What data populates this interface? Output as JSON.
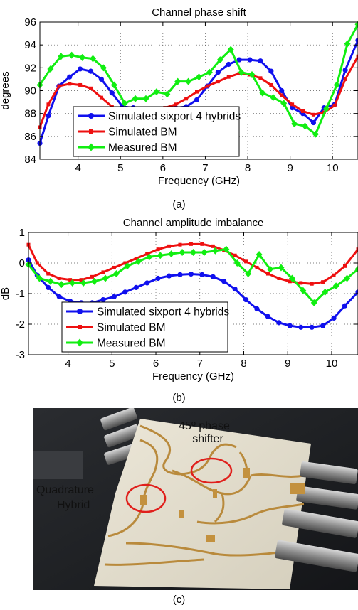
{
  "chart_data": [
    {
      "type": "line",
      "title": "Channel phase shift",
      "xlabel": "Frequency (GHz)",
      "ylabel": "degrees",
      "xlim": [
        3.1,
        10.6
      ],
      "ylim": [
        84,
        96
      ],
      "xticks": [
        4,
        5,
        6,
        7,
        8,
        9,
        10
      ],
      "yticks": [
        84,
        86,
        88,
        90,
        92,
        94,
        96
      ],
      "grid": true,
      "legend": "lower-left",
      "caption": "(a)",
      "series": [
        {
          "name": "Simulated sixport 4 hybrids",
          "color": "#1010ee",
          "marker": "circle",
          "x": [
            3.1,
            3.3,
            3.55,
            3.8,
            4.05,
            4.3,
            4.55,
            4.8,
            5.05,
            5.3,
            5.55,
            5.8,
            6.05,
            6.3,
            6.55,
            6.8,
            7.05,
            7.3,
            7.55,
            7.8,
            8.05,
            8.3,
            8.55,
            8.8,
            9.05,
            9.3,
            9.55,
            9.8,
            10.05,
            10.3,
            10.6
          ],
          "y": [
            85.4,
            87.8,
            90.4,
            91.2,
            91.9,
            91.7,
            91.0,
            89.8,
            88.6,
            88.5,
            88.3,
            88.3,
            88.3,
            88.5,
            88.6,
            89.2,
            90.4,
            91.6,
            92.3,
            92.7,
            92.7,
            92.6,
            91.7,
            90.0,
            88.5,
            88.0,
            87.2,
            88.5,
            88.8,
            91.8,
            94.4
          ]
        },
        {
          "name": "Simulated BM",
          "color": "#ee1010",
          "marker": "square",
          "x": [
            3.1,
            3.3,
            3.55,
            3.8,
            4.05,
            4.3,
            4.55,
            4.8,
            5.05,
            5.3,
            5.55,
            5.8,
            6.05,
            6.3,
            6.55,
            6.8,
            7.05,
            7.3,
            7.55,
            7.8,
            8.05,
            8.3,
            8.55,
            8.8,
            9.05,
            9.3,
            9.55,
            9.8,
            10.05,
            10.3,
            10.6
          ],
          "y": [
            86.8,
            88.8,
            90.4,
            90.6,
            90.5,
            90.2,
            89.4,
            88.6,
            88.0,
            87.8,
            87.9,
            88.2,
            88.5,
            88.8,
            89.3,
            89.9,
            90.4,
            90.8,
            91.2,
            91.5,
            91.4,
            91.1,
            90.5,
            89.6,
            88.8,
            88.2,
            87.9,
            88.1,
            88.7,
            91.0,
            93.0
          ]
        },
        {
          "name": "Measured BM",
          "color": "#11ee11",
          "marker": "diamond",
          "x": [
            3.1,
            3.35,
            3.6,
            3.85,
            4.1,
            4.35,
            4.6,
            4.85,
            5.1,
            5.35,
            5.6,
            5.85,
            6.1,
            6.35,
            6.6,
            6.85,
            7.1,
            7.35,
            7.6,
            7.85,
            8.1,
            8.35,
            8.6,
            8.85,
            9.1,
            9.35,
            9.6,
            9.85,
            10.1,
            10.35,
            10.6
          ],
          "y": [
            90.5,
            91.9,
            93.0,
            93.1,
            92.9,
            92.8,
            92.0,
            90.5,
            88.9,
            89.3,
            89.3,
            89.9,
            89.7,
            90.8,
            90.8,
            91.2,
            91.6,
            92.7,
            93.6,
            91.6,
            91.4,
            89.8,
            89.4,
            88.9,
            87.1,
            86.9,
            86.2,
            88.4,
            90.5,
            94.1,
            95.8
          ]
        }
      ]
    },
    {
      "type": "line",
      "title": "Channel amplitude imbalance",
      "xlabel": "Frequency (GHz)",
      "ylabel": "dB",
      "xlim": [
        3.1,
        10.6
      ],
      "ylim": [
        -3,
        1
      ],
      "xticks": [
        4,
        5,
        6,
        7,
        8,
        9,
        10
      ],
      "yticks": [
        -3,
        -2,
        -1,
        0,
        1
      ],
      "grid": true,
      "legend": "lower-left",
      "caption": "(b)",
      "series": [
        {
          "name": "Simulated sixport 4 hybrids",
          "color": "#1010ee",
          "marker": "circle",
          "x": [
            3.1,
            3.3,
            3.55,
            3.8,
            4.05,
            4.3,
            4.55,
            4.8,
            5.05,
            5.3,
            5.55,
            5.8,
            6.05,
            6.3,
            6.55,
            6.8,
            7.05,
            7.3,
            7.55,
            7.8,
            8.05,
            8.3,
            8.55,
            8.8,
            9.05,
            9.3,
            9.55,
            9.8,
            10.05,
            10.3,
            10.6
          ],
          "y": [
            0.1,
            -0.4,
            -0.8,
            -1.1,
            -1.25,
            -1.3,
            -1.3,
            -1.2,
            -1.1,
            -0.95,
            -0.8,
            -0.65,
            -0.5,
            -0.42,
            -0.38,
            -0.36,
            -0.38,
            -0.45,
            -0.6,
            -0.85,
            -1.2,
            -1.5,
            -1.75,
            -1.95,
            -2.05,
            -2.1,
            -2.1,
            -2.05,
            -1.8,
            -1.4,
            -0.95
          ]
        },
        {
          "name": "Simulated BM",
          "color": "#ee1010",
          "marker": "square",
          "x": [
            3.1,
            3.3,
            3.55,
            3.8,
            4.05,
            4.3,
            4.55,
            4.8,
            5.05,
            5.3,
            5.55,
            5.8,
            6.05,
            6.3,
            6.55,
            6.8,
            7.05,
            7.3,
            7.55,
            7.8,
            8.05,
            8.3,
            8.55,
            8.8,
            9.05,
            9.3,
            9.55,
            9.8,
            10.05,
            10.3,
            10.6
          ],
          "y": [
            0.6,
            0.0,
            -0.35,
            -0.5,
            -0.55,
            -0.55,
            -0.45,
            -0.3,
            -0.15,
            0.0,
            0.15,
            0.3,
            0.45,
            0.55,
            0.6,
            0.62,
            0.62,
            0.55,
            0.42,
            0.25,
            0.05,
            -0.15,
            -0.35,
            -0.5,
            -0.6,
            -0.65,
            -0.68,
            -0.62,
            -0.4,
            -0.1,
            0.45
          ]
        },
        {
          "name": "Measured BM",
          "color": "#11ee11",
          "marker": "diamond",
          "x": [
            3.1,
            3.35,
            3.6,
            3.85,
            4.1,
            4.35,
            4.6,
            4.85,
            5.1,
            5.35,
            5.6,
            5.85,
            6.1,
            6.35,
            6.6,
            6.85,
            7.1,
            7.35,
            7.6,
            7.85,
            8.1,
            8.35,
            8.6,
            8.85,
            9.1,
            9.35,
            9.6,
            9.85,
            10.1,
            10.35,
            10.6
          ],
          "y": [
            -0.05,
            -0.5,
            -0.6,
            -0.7,
            -0.65,
            -0.65,
            -0.6,
            -0.5,
            -0.35,
            -0.1,
            0.05,
            0.2,
            0.25,
            0.3,
            0.35,
            0.35,
            0.35,
            0.4,
            0.45,
            0.0,
            -0.35,
            0.28,
            -0.2,
            -0.15,
            -0.5,
            -0.9,
            -1.3,
            -0.95,
            -0.75,
            -0.5,
            -0.2
          ]
        }
      ]
    }
  ],
  "photo": {
    "caption": "(c)",
    "labels": {
      "phase_shifter_line1": "45º phase",
      "phase_shifter_line2": "shifter",
      "hybrid_line1": "Quadrature",
      "hybrid_line2": "Hybrid"
    }
  },
  "colors": {
    "board": "#e3ddcc",
    "trace": "#b98a3c",
    "highlight_circle": "#e0201c",
    "background": "#1f2125"
  }
}
